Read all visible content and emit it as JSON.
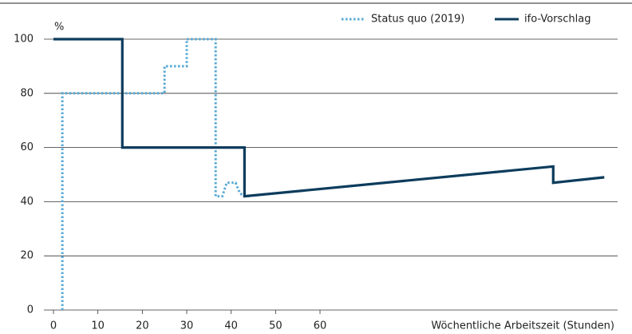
{
  "chart_data": {
    "type": "line",
    "unit_label": "%",
    "x_label": "Wöchentliche Arbeitszeit (Stunden)",
    "xlim": [
      0,
      127
    ],
    "xticks": [
      0,
      10,
      20,
      30,
      40,
      50,
      60
    ],
    "ylim": [
      0,
      100
    ],
    "yticks": [
      0,
      20,
      40,
      60,
      80,
      100
    ],
    "grid": true,
    "legend": "top-right",
    "series": [
      {
        "name": "Status quo (2019)",
        "color": "#5aaad6",
        "style": "dotted",
        "x": [
          2,
          2,
          25,
          25,
          30,
          30,
          36.5,
          36.5,
          38,
          39,
          41,
          42,
          43.2,
          112.5,
          112.5,
          124
        ],
        "values": [
          0,
          80,
          80,
          90,
          90,
          100,
          100,
          42,
          42,
          47,
          47,
          43,
          42,
          53,
          47,
          49
        ]
      },
      {
        "name": "ifo-Vorschlag",
        "color": "#0d3c5c",
        "style": "solid",
        "x": [
          0,
          15.5,
          15.5,
          43,
          43,
          112.5,
          112.5,
          124
        ],
        "values": [
          100,
          100,
          60,
          60,
          42,
          53,
          47,
          49
        ]
      }
    ]
  }
}
